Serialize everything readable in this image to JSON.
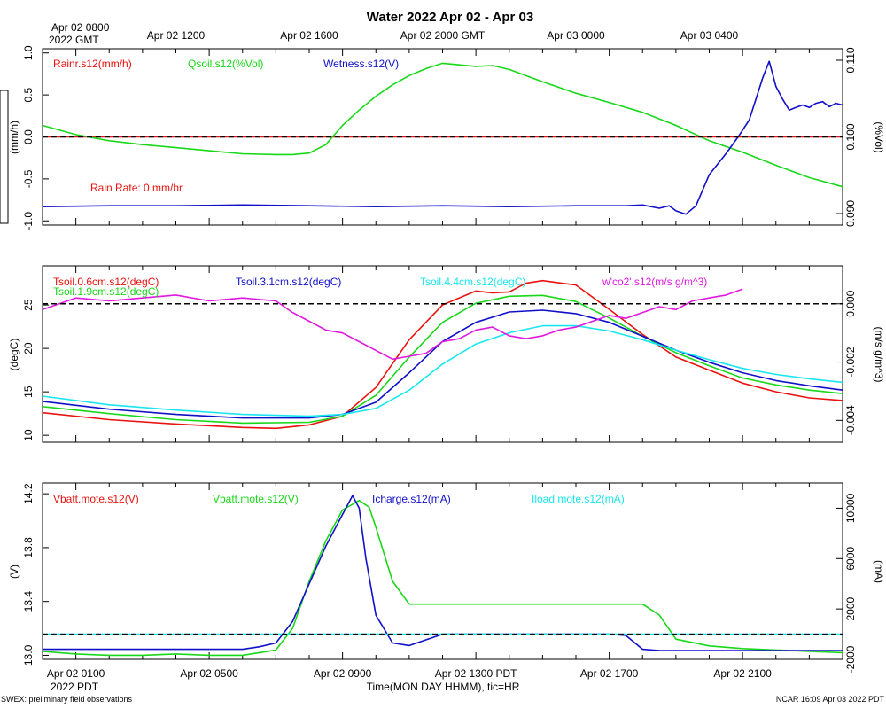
{
  "title": "Water 2022 Apr 02 - Apr 03",
  "footer": {
    "left": "SWEX: preliminary field observations",
    "center": "Time(MON DAY HHMM), tic=HR",
    "right": "NCAR 16:09 Apr 03 2022 PDT",
    "pdt_year": "2022 PDT"
  },
  "time_axis": {
    "range_hours": [
      0,
      24
    ],
    "gmt_first_label": [
      "Apr 02 0800",
      "2022 GMT"
    ],
    "gmt_ticks": [
      {
        "h": 4,
        "label": "Apr 02 1200"
      },
      {
        "h": 8,
        "label": "Apr 02 1600"
      },
      {
        "h": 12,
        "label": "Apr 02 2000 GMT"
      },
      {
        "h": 16,
        "label": "Apr 03 0000"
      },
      {
        "h": 20,
        "label": "Apr 03 0400"
      }
    ],
    "pdt_ticks": [
      {
        "h": 1,
        "label": "Apr 02 0100"
      },
      {
        "h": 5,
        "label": "Apr 02 0500"
      },
      {
        "h": 9,
        "label": "Apr 02 0900"
      },
      {
        "h": 13,
        "label": "Apr 02 1300 PDT"
      },
      {
        "h": 17,
        "label": "Apr 02 1700"
      },
      {
        "h": 21,
        "label": "Apr 02 2100"
      }
    ]
  },
  "colors": {
    "red": "#e8120f",
    "green": "#19d819",
    "blue": "#1010c8",
    "cyan": "#18e6ee",
    "magenta": "#e018e0",
    "black": "#000000"
  },
  "chart_data": [
    {
      "type": "line",
      "panel": "water",
      "left_axis": {
        "label": "(mm/h)",
        "ylim": [
          -1.05,
          1.05
        ],
        "ticks": [
          "1.0",
          "0.5",
          "0.0",
          "-0.5",
          "-1.0"
        ]
      },
      "right_axis": {
        "label": "(%Vol)",
        "ylim": [
          0.0885,
          0.1115
        ],
        "ticks": [
          "0.110",
          "0.100",
          "0.090"
        ]
      },
      "annotation": "Rain Rate: 0 mm/hr",
      "reference_line": 0.0,
      "series": [
        {
          "name": "Rainr.s12(mm/h)",
          "color": "red",
          "axis": "left",
          "x": [
            0,
            24
          ],
          "y": [
            0,
            0
          ]
        },
        {
          "name": "Qsoil.s12(%Vol)",
          "color": "green",
          "axis": "right",
          "x": [
            0,
            1,
            2,
            3,
            4,
            5,
            6,
            7,
            7.5,
            8,
            8.5,
            9,
            9.5,
            10,
            10.5,
            11,
            11.5,
            12,
            12.5,
            13,
            13.5,
            14,
            15,
            16,
            17,
            18,
            19,
            20,
            21,
            22,
            23,
            24
          ],
          "y": [
            0.1015,
            0.1003,
            0.0995,
            0.099,
            0.0986,
            0.0982,
            0.0978,
            0.0977,
            0.0977,
            0.0979,
            0.099,
            0.1015,
            0.1035,
            0.1053,
            0.1068,
            0.108,
            0.1089,
            0.1096,
            0.1094,
            0.1092,
            0.1093,
            0.1088,
            0.1072,
            0.1057,
            0.1045,
            0.1032,
            0.1015,
            0.0995,
            0.098,
            0.0963,
            0.0947,
            0.0935
          ]
        },
        {
          "name": "Wetness.s12(V)",
          "color": "blue",
          "axis": "left",
          "x": [
            0,
            2,
            4,
            6,
            8,
            10,
            12,
            14,
            16,
            17.5,
            18,
            18.5,
            18.8,
            19,
            19.3,
            19.6,
            20,
            20.5,
            20.9,
            21.2,
            21.4,
            21.6,
            21.8,
            22,
            22.2,
            22.4,
            22.6,
            22.8,
            23,
            23.2,
            23.4,
            23.6,
            23.8,
            24
          ],
          "y": [
            -0.83,
            -0.82,
            -0.82,
            -0.81,
            -0.82,
            -0.83,
            -0.82,
            -0.83,
            -0.82,
            -0.82,
            -0.81,
            -0.85,
            -0.82,
            -0.88,
            -0.92,
            -0.82,
            -0.45,
            -0.2,
            0.02,
            0.2,
            0.45,
            0.7,
            0.9,
            0.6,
            0.45,
            0.32,
            0.35,
            0.38,
            0.35,
            0.4,
            0.42,
            0.36,
            0.4,
            0.38
          ]
        }
      ]
    },
    {
      "type": "line",
      "panel": "soil-temperature",
      "left_axis": {
        "label": "(degC)",
        "ylim": [
          9.2,
          29.5
        ],
        "ticks": [
          "25",
          "20",
          "15",
          "10"
        ]
      },
      "right_axis": {
        "label": "(m/s g/m^3)",
        "ylim": [
          -0.00475,
          0.0013
        ],
        "ticks": [
          "0.000",
          "-0.002",
          "-0.004"
        ]
      },
      "reference_line": 0.0,
      "series": [
        {
          "name": "Tsoil.0.6cm.s12(degC)",
          "color": "red",
          "axis": "left",
          "x": [
            0,
            2,
            4,
            6,
            7,
            8,
            9,
            10,
            11,
            12,
            13,
            13.5,
            14,
            14.5,
            15,
            16,
            17,
            18,
            19,
            20,
            21,
            22,
            23,
            24
          ],
          "y": [
            12.6,
            11.8,
            11.3,
            10.9,
            10.8,
            11.2,
            12.2,
            15.5,
            21.0,
            25.0,
            26.6,
            26.4,
            26.5,
            27.5,
            27.8,
            27.3,
            24.5,
            21.6,
            19.0,
            17.5,
            16.0,
            15.0,
            14.3,
            14.0
          ]
        },
        {
          "name": "Tsoil.1.9cm.s12(degC)",
          "color": "green",
          "axis": "left",
          "x": [
            0,
            2,
            4,
            6,
            8,
            9,
            10,
            11,
            12,
            13,
            14,
            15,
            16,
            17,
            18,
            19,
            20,
            21,
            22,
            23,
            24
          ],
          "y": [
            13.3,
            12.5,
            11.8,
            11.4,
            11.5,
            12.2,
            14.6,
            19.0,
            23.0,
            25.2,
            26.0,
            26.1,
            25.4,
            23.5,
            21.4,
            19.5,
            18.0,
            16.6,
            15.8,
            15.2,
            14.8
          ]
        },
        {
          "name": "Tsoil.3.1cm.s12(degC)",
          "color": "blue",
          "axis": "left",
          "x": [
            0,
            2,
            4,
            6,
            8,
            9,
            10,
            11,
            12,
            13,
            14,
            15,
            16,
            17,
            18,
            19,
            20,
            21,
            22,
            23,
            24
          ],
          "y": [
            13.9,
            13.0,
            12.4,
            12.0,
            12.0,
            12.4,
            13.8,
            17.2,
            20.8,
            23.0,
            24.2,
            24.4,
            24.0,
            23.0,
            21.4,
            19.8,
            18.4,
            17.2,
            16.3,
            15.7,
            15.2
          ]
        },
        {
          "name": "Tsoil.4.4cm.s12(degC)",
          "color": "cyan",
          "axis": "left",
          "x": [
            0,
            2,
            4,
            6,
            8,
            9,
            10,
            11,
            12,
            13,
            14,
            15,
            16,
            17,
            18,
            19,
            20,
            21,
            22,
            23,
            24
          ],
          "y": [
            14.5,
            13.5,
            12.9,
            12.4,
            12.2,
            12.4,
            13.1,
            15.2,
            18.2,
            20.5,
            21.8,
            22.6,
            22.6,
            22.0,
            21.0,
            19.8,
            18.7,
            17.7,
            17.0,
            16.5,
            16.1
          ]
        },
        {
          "name": "w'co2'.s12(m/s g/m^3)",
          "color": "magenta",
          "axis": "right",
          "x": [
            0,
            1,
            2,
            3,
            4,
            5,
            6,
            7,
            7.5,
            8,
            8.5,
            9,
            9.5,
            10,
            10.5,
            11,
            11.5,
            12,
            12.5,
            13,
            13.5,
            14,
            14.5,
            15,
            15.5,
            16,
            16.5,
            17,
            17.5,
            18,
            18.5,
            19,
            19.5,
            20,
            20.5,
            21
          ],
          "y": [
            -0.0002,
            0.0002,
            0.0001,
            0.0002,
            0.0003,
            0.0001,
            0.0002,
            0.0001,
            -0.0003,
            -0.0006,
            -0.0009,
            -0.001,
            -0.0013,
            -0.0016,
            -0.0019,
            -0.0018,
            -0.0017,
            -0.0013,
            -0.0012,
            -0.0009,
            -0.0008,
            -0.0011,
            -0.0012,
            -0.0011,
            -0.0009,
            -0.0008,
            -0.0006,
            -0.0004,
            -0.0005,
            -0.0003,
            -0.0001,
            -0.0002,
            0.0001,
            0.0002,
            0.0003,
            0.0005
          ]
        }
      ]
    },
    {
      "type": "line",
      "panel": "battery",
      "left_axis": {
        "label": "(V)",
        "ylim": [
          12.97,
          14.28
        ],
        "ticks": [
          "14.2",
          "13.8",
          "13.4",
          "13.0"
        ]
      },
      "right_axis": {
        "label": "(mA)",
        "ylim": [
          -2000,
          12000
        ],
        "ticks": [
          "10000",
          "6000",
          "2000",
          "-2000"
        ]
      },
      "reference_line": 0,
      "series": [
        {
          "name": "Vbatt.mote.s12(V)",
          "color": "red",
          "axis": "left",
          "x": [],
          "y": []
        },
        {
          "name": "Vbatt.mote.s12(V)",
          "color": "green",
          "axis": "left",
          "x": [
            0,
            1,
            2,
            3,
            4,
            5,
            6,
            7,
            7.5,
            8,
            8.5,
            9,
            9.5,
            9.8,
            10,
            10.5,
            11,
            12,
            13,
            14,
            15,
            16,
            17,
            18,
            18.5,
            19,
            20,
            21,
            22,
            23,
            24
          ],
          "y": [
            13.03,
            13.01,
            13.0,
            13.0,
            13.01,
            13.0,
            13.0,
            13.04,
            13.2,
            13.55,
            13.85,
            14.08,
            14.15,
            14.1,
            13.95,
            13.55,
            13.38,
            13.38,
            13.38,
            13.38,
            13.38,
            13.38,
            13.38,
            13.38,
            13.3,
            13.12,
            13.07,
            13.05,
            13.04,
            13.03,
            13.02
          ]
        },
        {
          "name": "Icharge.s12(mA)",
          "color": "blue",
          "axis": "right",
          "x": [
            0,
            1,
            2,
            3,
            4,
            5,
            6,
            6.5,
            7,
            7.5,
            8,
            8.5,
            9,
            9.3,
            9.5,
            9.7,
            10,
            10.5,
            11,
            12,
            13,
            14,
            15,
            16,
            17,
            17.5,
            18,
            18.5,
            19,
            20,
            21,
            22,
            23,
            24
          ],
          "y": [
            -1200,
            -1200,
            -1200,
            -1200,
            -1200,
            -1200,
            -1200,
            -1000,
            -700,
            1000,
            4000,
            7000,
            9500,
            11000,
            10000,
            6000,
            1500,
            -700,
            -900,
            0,
            0,
            0,
            0,
            0,
            0,
            -100,
            -1200,
            -1300,
            -1300,
            -1300,
            -1300,
            -1300,
            -1300,
            -1300
          ]
        },
        {
          "name": "Iload.mote.s12(mA)",
          "color": "cyan",
          "axis": "right",
          "x": [
            0,
            24
          ],
          "y": [
            0,
            0
          ]
        }
      ]
    }
  ]
}
